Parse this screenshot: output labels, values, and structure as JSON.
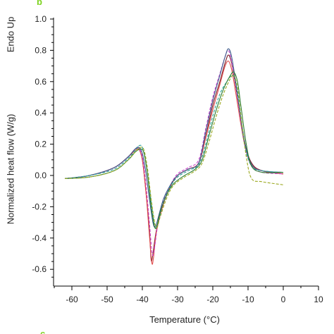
{
  "panel_labels": {
    "top": "b",
    "bottom": "c"
  },
  "colors": {
    "panel_letter": "#7ed321"
  },
  "chart_data": {
    "type": "line",
    "title": "",
    "xlabel": "Temperature (°C)",
    "ylabel": "Normalized heat flow (W/g)",
    "annotation": "Endo Up",
    "xlim": [
      -65,
      10
    ],
    "ylim": [
      -0.7,
      1.0
    ],
    "xticks": [
      -60,
      -50,
      -40,
      -30,
      -20,
      -10,
      0,
      10
    ],
    "yticks": [
      -0.6,
      -0.4,
      -0.2,
      0.0,
      0.2,
      0.4,
      0.6,
      0.8,
      1.0
    ],
    "xtick_labels": [
      "-60",
      "-50",
      "-40",
      "-30",
      "-20",
      "-10",
      "0",
      "10"
    ],
    "ytick_labels": [
      "-0.6",
      "-0.4",
      "-0.2",
      "0.0",
      "0.2",
      "0.4",
      "0.6",
      "0.8",
      "1.0"
    ],
    "grid": false,
    "legend": "none",
    "series": [
      {
        "color": "#7a1f2b",
        "dash": "none",
        "points": [
          [
            -62,
            -0.02
          ],
          [
            -55,
            0.0
          ],
          [
            -48,
            0.05
          ],
          [
            -44,
            0.12
          ],
          [
            -42,
            0.17
          ],
          [
            -41,
            0.17
          ],
          [
            -40,
            0.1
          ],
          [
            -39,
            -0.1
          ],
          [
            -38,
            -0.35
          ],
          [
            -37.5,
            -0.54
          ],
          [
            -37,
            -0.5
          ],
          [
            -36,
            -0.35
          ],
          [
            -34,
            -0.18
          ],
          [
            -32,
            -0.07
          ],
          [
            -30,
            0.0
          ],
          [
            -27,
            0.04
          ],
          [
            -24,
            0.08
          ],
          [
            -22,
            0.25
          ],
          [
            -20,
            0.45
          ],
          [
            -18,
            0.6
          ],
          [
            -16.5,
            0.72
          ],
          [
            -15.5,
            0.77
          ],
          [
            -14.5,
            0.7
          ],
          [
            -13,
            0.5
          ],
          [
            -11,
            0.22
          ],
          [
            -9,
            0.08
          ],
          [
            -6,
            0.03
          ],
          [
            0,
            0.01
          ]
        ]
      },
      {
        "color": "#e04b4b",
        "dash": "none",
        "points": [
          [
            -62,
            -0.02
          ],
          [
            -55,
            0.0
          ],
          [
            -48,
            0.05
          ],
          [
            -44,
            0.12
          ],
          [
            -42,
            0.16
          ],
          [
            -41,
            0.17
          ],
          [
            -40,
            0.1
          ],
          [
            -39,
            -0.1
          ],
          [
            -38,
            -0.38
          ],
          [
            -37.3,
            -0.56
          ],
          [
            -36.8,
            -0.52
          ],
          [
            -36,
            -0.36
          ],
          [
            -34,
            -0.18
          ],
          [
            -32,
            -0.07
          ],
          [
            -30,
            0.0
          ],
          [
            -27,
            0.04
          ],
          [
            -24,
            0.08
          ],
          [
            -22,
            0.24
          ],
          [
            -20,
            0.42
          ],
          [
            -18,
            0.58
          ],
          [
            -16.5,
            0.7
          ],
          [
            -15.5,
            0.73
          ],
          [
            -14.5,
            0.66
          ],
          [
            -13,
            0.46
          ],
          [
            -11,
            0.2
          ],
          [
            -9,
            0.07
          ],
          [
            -6,
            0.03
          ],
          [
            0,
            0.01
          ]
        ]
      },
      {
        "color": "#cc44cc",
        "dash": "4,2",
        "points": [
          [
            -62,
            -0.02
          ],
          [
            -55,
            0.0
          ],
          [
            -48,
            0.05
          ],
          [
            -44,
            0.12
          ],
          [
            -42,
            0.17
          ],
          [
            -41,
            0.17
          ],
          [
            -40,
            0.12
          ],
          [
            -39,
            -0.05
          ],
          [
            -38,
            -0.3
          ],
          [
            -37.2,
            -0.5
          ],
          [
            -36.6,
            -0.47
          ],
          [
            -35.5,
            -0.3
          ],
          [
            -34,
            -0.16
          ],
          [
            -32,
            -0.06
          ],
          [
            -30,
            0.01
          ],
          [
            -27,
            0.05
          ],
          [
            -24,
            0.1
          ],
          [
            -22,
            0.3
          ],
          [
            -20,
            0.5
          ],
          [
            -18,
            0.65
          ],
          [
            -16.5,
            0.76
          ],
          [
            -15.6,
            0.8
          ],
          [
            -14.6,
            0.72
          ],
          [
            -13,
            0.5
          ],
          [
            -11,
            0.2
          ],
          [
            -9,
            0.06
          ],
          [
            -6,
            0.02
          ],
          [
            0,
            0.01
          ]
        ]
      },
      {
        "color": "#3d5a8c",
        "dash": "none",
        "points": [
          [
            -62,
            -0.02
          ],
          [
            -55,
            0.0
          ],
          [
            -48,
            0.05
          ],
          [
            -44,
            0.12
          ],
          [
            -42,
            0.17
          ],
          [
            -41,
            0.18
          ],
          [
            -40,
            0.14
          ],
          [
            -39,
            0.02
          ],
          [
            -38,
            -0.15
          ],
          [
            -37,
            -0.3
          ],
          [
            -36.3,
            -0.33
          ],
          [
            -35.5,
            -0.27
          ],
          [
            -34,
            -0.15
          ],
          [
            -32,
            -0.06
          ],
          [
            -30,
            0.0
          ],
          [
            -27,
            0.04
          ],
          [
            -24,
            0.08
          ],
          [
            -22,
            0.28
          ],
          [
            -20,
            0.48
          ],
          [
            -18,
            0.64
          ],
          [
            -16.5,
            0.76
          ],
          [
            -15.5,
            0.81
          ],
          [
            -14.5,
            0.74
          ],
          [
            -13,
            0.52
          ],
          [
            -11,
            0.22
          ],
          [
            -9,
            0.07
          ],
          [
            -6,
            0.03
          ],
          [
            0,
            0.02
          ]
        ]
      },
      {
        "color": "#2aa198",
        "dash": "4,2",
        "points": [
          [
            -62,
            -0.02
          ],
          [
            -55,
            0.0
          ],
          [
            -48,
            0.04
          ],
          [
            -44,
            0.11
          ],
          [
            -42,
            0.16
          ],
          [
            -41,
            0.19
          ],
          [
            -40,
            0.18
          ],
          [
            -39,
            0.08
          ],
          [
            -38,
            -0.08
          ],
          [
            -37,
            -0.25
          ],
          [
            -36.3,
            -0.34
          ],
          [
            -35.5,
            -0.3
          ],
          [
            -34,
            -0.17
          ],
          [
            -32,
            -0.07
          ],
          [
            -30,
            -0.01
          ],
          [
            -27,
            0.03
          ],
          [
            -24,
            0.07
          ],
          [
            -22,
            0.2
          ],
          [
            -20,
            0.38
          ],
          [
            -18,
            0.52
          ],
          [
            -16,
            0.6
          ],
          [
            -14.5,
            0.64
          ],
          [
            -13.5,
            0.6
          ],
          [
            -12.5,
            0.45
          ],
          [
            -11,
            0.2
          ],
          [
            -9,
            0.06
          ],
          [
            -6,
            0.03
          ],
          [
            0,
            0.02
          ]
        ]
      },
      {
        "color": "#2e7d32",
        "dash": "none",
        "points": [
          [
            -62,
            -0.02
          ],
          [
            -55,
            -0.01
          ],
          [
            -48,
            0.03
          ],
          [
            -44,
            0.1
          ],
          [
            -42,
            0.15
          ],
          [
            -40.5,
            0.17
          ],
          [
            -39.5,
            0.14
          ],
          [
            -38.5,
            0.0
          ],
          [
            -37.5,
            -0.2
          ],
          [
            -36.5,
            -0.33
          ],
          [
            -35.8,
            -0.32
          ],
          [
            -35,
            -0.24
          ],
          [
            -33,
            -0.12
          ],
          [
            -31,
            -0.05
          ],
          [
            -28,
            0.0
          ],
          [
            -25,
            0.04
          ],
          [
            -23,
            0.1
          ],
          [
            -21,
            0.26
          ],
          [
            -19,
            0.42
          ],
          [
            -17,
            0.55
          ],
          [
            -15,
            0.64
          ],
          [
            -14,
            0.66
          ],
          [
            -13,
            0.6
          ],
          [
            -12,
            0.44
          ],
          [
            -10.5,
            0.2
          ],
          [
            -9,
            0.06
          ],
          [
            -6,
            0.02
          ],
          [
            0,
            0.02
          ]
        ]
      },
      {
        "color": "#9aa81e",
        "dash": "4,2",
        "points": [
          [
            -62,
            -0.02
          ],
          [
            -55,
            -0.01
          ],
          [
            -48,
            0.03
          ],
          [
            -44,
            0.1
          ],
          [
            -42,
            0.15
          ],
          [
            -40.5,
            0.18
          ],
          [
            -39.5,
            0.16
          ],
          [
            -38.5,
            0.04
          ],
          [
            -37.5,
            -0.15
          ],
          [
            -36.5,
            -0.3
          ],
          [
            -35.8,
            -0.33
          ],
          [
            -35,
            -0.27
          ],
          [
            -33,
            -0.14
          ],
          [
            -31,
            -0.06
          ],
          [
            -28,
            -0.01
          ],
          [
            -25,
            0.03
          ],
          [
            -23,
            0.08
          ],
          [
            -21,
            0.22
          ],
          [
            -19,
            0.38
          ],
          [
            -17,
            0.52
          ],
          [
            -15,
            0.62
          ],
          [
            -14,
            0.64
          ],
          [
            -13,
            0.56
          ],
          [
            -12,
            0.38
          ],
          [
            -10.5,
            0.12
          ],
          [
            -9,
            -0.02
          ],
          [
            -6,
            -0.04
          ],
          [
            0,
            -0.06
          ]
        ]
      }
    ]
  }
}
